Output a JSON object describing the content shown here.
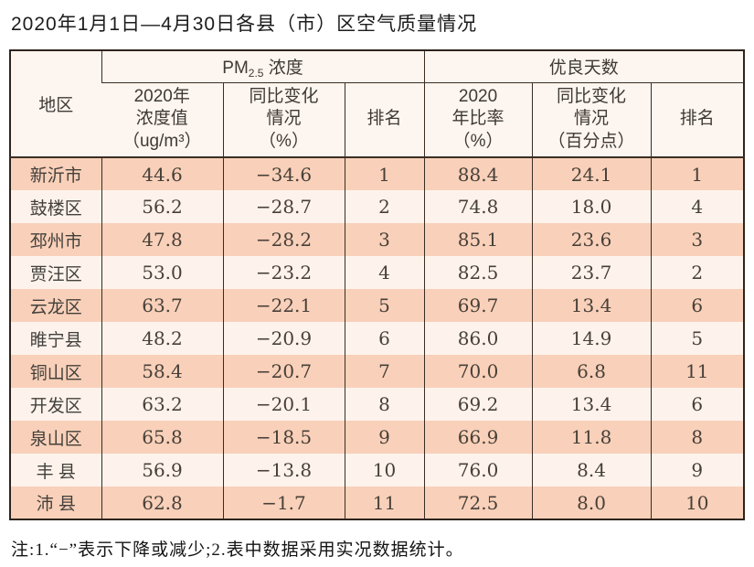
{
  "page": {
    "title": "2020年1月1日—4月30日各县（市）区空气质量情况",
    "note": "注:1.“−”表示下降或减少;2.表中数据采用实况数据统计。"
  },
  "colors": {
    "stripe_dark": "#f9d0b9",
    "stripe_light": "#fdf3ec",
    "header_bg": "#fdf5ef",
    "border_dark": "#2e241d",
    "grid": "#3a2d24"
  },
  "table": {
    "region_header": "地区",
    "group_pm": {
      "prefix": "PM",
      "sub": "2.5",
      "suffix": " 浓度"
    },
    "group_days": "优良天数",
    "subheaders": [
      "2020年\n浓度值\n（ug/m³）",
      "同比变化\n情况\n（%）",
      "排名",
      "2020\n年比率\n（%）",
      "同比变化\n情况\n（百分点）",
      "排名"
    ],
    "rows": [
      [
        "新沂市",
        "44.6",
        "−34.6",
        "1",
        "88.4",
        "24.1",
        "1"
      ],
      [
        "鼓楼区",
        "56.2",
        "−28.7",
        "2",
        "74.8",
        "18.0",
        "4"
      ],
      [
        "邳州市",
        "47.8",
        "−28.2",
        "3",
        "85.1",
        "23.6",
        "3"
      ],
      [
        "贾汪区",
        "53.0",
        "−23.2",
        "4",
        "82.5",
        "23.7",
        "2"
      ],
      [
        "云龙区",
        "63.7",
        "−22.1",
        "5",
        "69.7",
        "13.4",
        "6"
      ],
      [
        "睢宁县",
        "48.2",
        "−20.9",
        "6",
        "86.0",
        "14.9",
        "5"
      ],
      [
        "铜山区",
        "58.4",
        "−20.7",
        "7",
        "70.0",
        "6.8",
        "11"
      ],
      [
        "开发区",
        "63.2",
        "−20.1",
        "8",
        "69.2",
        "13.4",
        "6"
      ],
      [
        "泉山区",
        "65.8",
        "−18.5",
        "9",
        "66.9",
        "11.8",
        "8"
      ],
      [
        "丰 县",
        "56.9",
        "−13.8",
        "10",
        "76.0",
        "8.4",
        "9"
      ],
      [
        "沛 县",
        "62.8",
        "−1.7",
        "11",
        "72.5",
        "8.0",
        "10"
      ]
    ]
  },
  "chart_data": {
    "type": "table",
    "title": "2020年1月1日—4月30日各县（市）区空气质量情况",
    "column_groups": [
      "地区",
      "PM2.5浓度",
      "优良天数"
    ],
    "columns": [
      "地区",
      "PM2.5浓度 2020年浓度值（ug/m³）",
      "PM2.5浓度 同比变化情况（%）",
      "PM2.5浓度 排名",
      "优良天数 2020年比率（%）",
      "优良天数 同比变化情况（百分点）",
      "优良天数 排名"
    ],
    "rows": [
      [
        "新沂市",
        44.6,
        -34.6,
        1,
        88.4,
        24.1,
        1
      ],
      [
        "鼓楼区",
        56.2,
        -28.7,
        2,
        74.8,
        18.0,
        4
      ],
      [
        "邳州市",
        47.8,
        -28.2,
        3,
        85.1,
        23.6,
        3
      ],
      [
        "贾汪区",
        53.0,
        -23.2,
        4,
        82.5,
        23.7,
        2
      ],
      [
        "云龙区",
        63.7,
        -22.1,
        5,
        69.7,
        13.4,
        6
      ],
      [
        "睢宁县",
        48.2,
        -20.9,
        6,
        86.0,
        14.9,
        5
      ],
      [
        "铜山区",
        58.4,
        -20.7,
        7,
        70.0,
        6.8,
        11
      ],
      [
        "开发区",
        63.2,
        -20.1,
        8,
        69.2,
        13.4,
        6
      ],
      [
        "泉山区",
        65.8,
        -18.5,
        9,
        66.9,
        11.8,
        8
      ],
      [
        "丰县",
        56.9,
        -13.8,
        10,
        76.0,
        8.4,
        9
      ],
      [
        "沛县",
        62.8,
        -1.7,
        11,
        72.5,
        8.0,
        10
      ]
    ],
    "footnote": "注:1.“−”表示下降或减少;2.表中数据采用实况数据统计。"
  }
}
